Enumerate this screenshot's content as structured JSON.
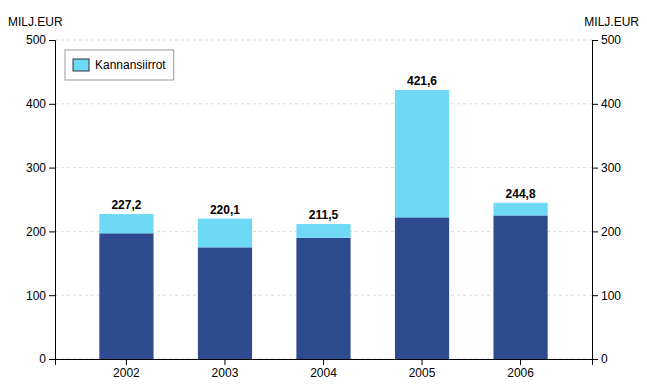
{
  "chart_data": {
    "type": "bar",
    "stacked": true,
    "categories": [
      "2002",
      "2003",
      "2004",
      "2005",
      "2006"
    ],
    "series": [
      {
        "color": "#2E4B8F",
        "values": [
          197.0,
          175.0,
          190.0,
          222.0,
          225.0
        ]
      },
      {
        "name": "Kannansiirrot",
        "color": "#6DD9F5",
        "values": [
          30.2,
          45.1,
          21.5,
          199.6,
          19.8
        ]
      }
    ],
    "totals": [
      227.2,
      220.1,
      211.5,
      421.6,
      244.8
    ],
    "total_labels": [
      "227,2",
      "220,1",
      "211,5",
      "421,6",
      "244,8"
    ],
    "ylabel": "MILJ.EUR",
    "y2label": "MILJ.EUR",
    "ylim": [
      0,
      500
    ],
    "yticks": [
      0,
      100,
      200,
      300,
      400,
      500
    ],
    "y2lim": [
      0,
      500
    ],
    "y2ticks": [
      0,
      100,
      200,
      300,
      400,
      500
    ],
    "grid": true,
    "legend": "upper left"
  }
}
